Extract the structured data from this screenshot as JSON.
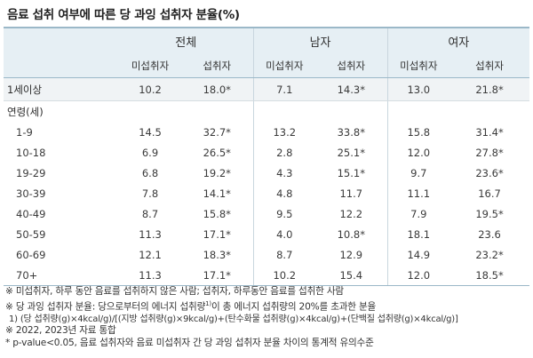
{
  "title": "음료 섭취 여부에 따른 당 과잉 섭취자 분율(%)",
  "groups": [
    "전체",
    "남자",
    "여자"
  ],
  "sub_headers": [
    "미섭취자",
    "섭취자"
  ],
  "rows": [
    {
      "label": "1세이상",
      "values": [
        "10.2",
        "18.0*",
        "7.1",
        "14.3*",
        "13.0",
        "21.8*"
      ]
    },
    {
      "label": "연령(세)",
      "values": [
        "",
        "",
        "",
        "",
        "",
        ""
      ]
    },
    {
      "label": "1-9",
      "values": [
        "14.5",
        "32.7*",
        "13.2",
        "33.8*",
        "15.8",
        "31.4*"
      ]
    },
    {
      "label": "10-18",
      "values": [
        "6.9",
        "26.5*",
        "2.8",
        "25.1*",
        "12.0",
        "27.8*"
      ]
    },
    {
      "label": "19-29",
      "values": [
        "6.8",
        "19.2*",
        "4.3",
        "15.1*",
        "9.7",
        "23.6*"
      ]
    },
    {
      "label": "30-39",
      "values": [
        "7.8",
        "14.1*",
        "4.8",
        "11.7",
        "11.1",
        "16.7"
      ]
    },
    {
      "label": "40-49",
      "values": [
        "8.7",
        "15.8*",
        "9.5",
        "12.2",
        "7.9",
        "19.5*"
      ]
    },
    {
      "label": "50-59",
      "values": [
        "11.3",
        "17.1*",
        "4.0",
        "10.8*",
        "18.1",
        "23.6"
      ]
    },
    {
      "label": "60-69",
      "values": [
        "12.1",
        "18.3*",
        "8.7",
        "12.9",
        "14.9",
        "23.2*"
      ]
    },
    {
      "label": "70+",
      "values": [
        "11.3",
        "17.1*",
        "10.2",
        "15.4",
        "12.0",
        "18.5*"
      ]
    }
  ],
  "notes": {
    "n1": "※ 미섭취자, 하루 동안 음료를 섭취하지 않은 사람; 섭취자, 하루동안 음료를 섭취한 사람",
    "n2a": "※ 당 과잉 섭취자 분율: 당으로부터의 에너지 섭취량",
    "n2sup": "1)",
    "n2b": "이 총 에너지 섭취량의 20%를 초과한 분율",
    "n3": "1) (당 섭취량(g)×4kcal/g)/[(지방 섭취량(g)×9kcal/g)+(탄수화물 섭취량(g)×4kcal/g)+(단백질 섭취량(g)×4kcal/g)]",
    "n4": "※ 2022, 2023년 자료 통합",
    "n5": "* p-value<0.05, 음료 섭취자와 음료 미섭취자 간 당 과잉 섭취자 분율 차이의 통계적 유의수준"
  }
}
